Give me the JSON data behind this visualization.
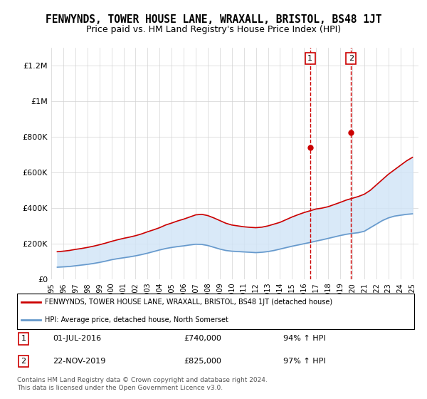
{
  "title": "FENWYNDS, TOWER HOUSE LANE, WRAXALL, BRISTOL, BS48 1JT",
  "subtitle": "Price paid vs. HM Land Registry's House Price Index (HPI)",
  "title_fontsize": 10.5,
  "subtitle_fontsize": 9.5,
  "ylabel": "",
  "xlabel": "",
  "ylim": [
    0,
    1300000
  ],
  "xlim_start": 1995.0,
  "xlim_end": 2025.5,
  "yticks": [
    0,
    200000,
    400000,
    600000,
    800000,
    1000000,
    1200000
  ],
  "ytick_labels": [
    "£0",
    "£200K",
    "£400K",
    "£600K",
    "£800K",
    "£1M",
    "£1.2M"
  ],
  "xtick_years": [
    1995,
    1996,
    1997,
    1998,
    1999,
    2000,
    2001,
    2002,
    2003,
    2004,
    2005,
    2006,
    2007,
    2008,
    2009,
    2010,
    2011,
    2012,
    2013,
    2014,
    2015,
    2016,
    2017,
    2018,
    2019,
    2020,
    2021,
    2022,
    2023,
    2024,
    2025
  ],
  "house_color": "#cc0000",
  "hpi_color": "#6699cc",
  "shade_color": "#d0e4f7",
  "marker1_date": 2016.5,
  "marker1_price": 740000,
  "marker2_date": 2019.9,
  "marker2_price": 825000,
  "marker1_label": "01-JUL-2016",
  "marker1_price_label": "£740,000",
  "marker1_pct": "94% ↑ HPI",
  "marker2_label": "22-NOV-2019",
  "marker2_price_label": "£825,000",
  "marker2_pct": "97% ↑ HPI",
  "legend1": "FENWYNDS, TOWER HOUSE LANE, WRAXALL, BRISTOL, BS48 1JT (detached house)",
  "legend2": "HPI: Average price, detached house, North Somerset",
  "footer": "Contains HM Land Registry data © Crown copyright and database right 2024.\nThis data is licensed under the Open Government Licence v3.0.",
  "house_x": [
    1995.5,
    1996.0,
    1996.5,
    1997.0,
    1997.5,
    1998.0,
    1998.5,
    1999.0,
    1999.5,
    2000.0,
    2000.5,
    2001.0,
    2001.5,
    2002.0,
    2002.5,
    2003.0,
    2003.5,
    2004.0,
    2004.5,
    2005.0,
    2005.5,
    2006.0,
    2006.5,
    2007.0,
    2007.5,
    2008.0,
    2008.5,
    2009.0,
    2009.5,
    2010.0,
    2010.5,
    2011.0,
    2011.5,
    2012.0,
    2012.5,
    2013.0,
    2013.5,
    2014.0,
    2014.5,
    2015.0,
    2015.5,
    2016.0,
    2016.5,
    2017.0,
    2017.5,
    2018.0,
    2018.5,
    2019.0,
    2019.5,
    2020.0,
    2020.5,
    2021.0,
    2021.5,
    2022.0,
    2022.5,
    2023.0,
    2023.5,
    2024.0,
    2024.5,
    2025.0
  ],
  "house_y": [
    155000,
    158000,
    162000,
    168000,
    173000,
    179000,
    186000,
    194000,
    203000,
    213000,
    222000,
    230000,
    237000,
    245000,
    255000,
    267000,
    278000,
    290000,
    305000,
    316000,
    328000,
    338000,
    350000,
    362000,
    365000,
    358000,
    345000,
    330000,
    315000,
    305000,
    300000,
    295000,
    292000,
    290000,
    293000,
    300000,
    310000,
    320000,
    335000,
    350000,
    363000,
    375000,
    385000,
    395000,
    400000,
    408000,
    420000,
    432000,
    445000,
    455000,
    465000,
    478000,
    500000,
    530000,
    560000,
    590000,
    615000,
    640000,
    665000,
    685000
  ],
  "hpi_x": [
    1995.5,
    1996.0,
    1996.5,
    1997.0,
    1997.5,
    1998.0,
    1998.5,
    1999.0,
    1999.5,
    2000.0,
    2000.5,
    2001.0,
    2001.5,
    2002.0,
    2002.5,
    2003.0,
    2003.5,
    2004.0,
    2004.5,
    2005.0,
    2005.5,
    2006.0,
    2006.5,
    2007.0,
    2007.5,
    2008.0,
    2008.5,
    2009.0,
    2009.5,
    2010.0,
    2010.5,
    2011.0,
    2011.5,
    2012.0,
    2012.5,
    2013.0,
    2013.5,
    2014.0,
    2014.5,
    2015.0,
    2015.5,
    2016.0,
    2016.5,
    2017.0,
    2017.5,
    2018.0,
    2018.5,
    2019.0,
    2019.5,
    2020.0,
    2020.5,
    2021.0,
    2021.5,
    2022.0,
    2022.5,
    2023.0,
    2023.5,
    2024.0,
    2024.5,
    2025.0
  ],
  "hpi_y": [
    68000,
    70000,
    72000,
    76000,
    80000,
    84000,
    89000,
    95000,
    102000,
    110000,
    116000,
    121000,
    126000,
    132000,
    139000,
    147000,
    156000,
    165000,
    173000,
    179000,
    184000,
    188000,
    193000,
    197000,
    196000,
    190000,
    180000,
    170000,
    162000,
    158000,
    156000,
    154000,
    152000,
    150000,
    152000,
    156000,
    162000,
    170000,
    178000,
    186000,
    193000,
    200000,
    207000,
    215000,
    222000,
    230000,
    238000,
    246000,
    253000,
    258000,
    262000,
    270000,
    290000,
    310000,
    330000,
    345000,
    355000,
    360000,
    365000,
    368000
  ]
}
